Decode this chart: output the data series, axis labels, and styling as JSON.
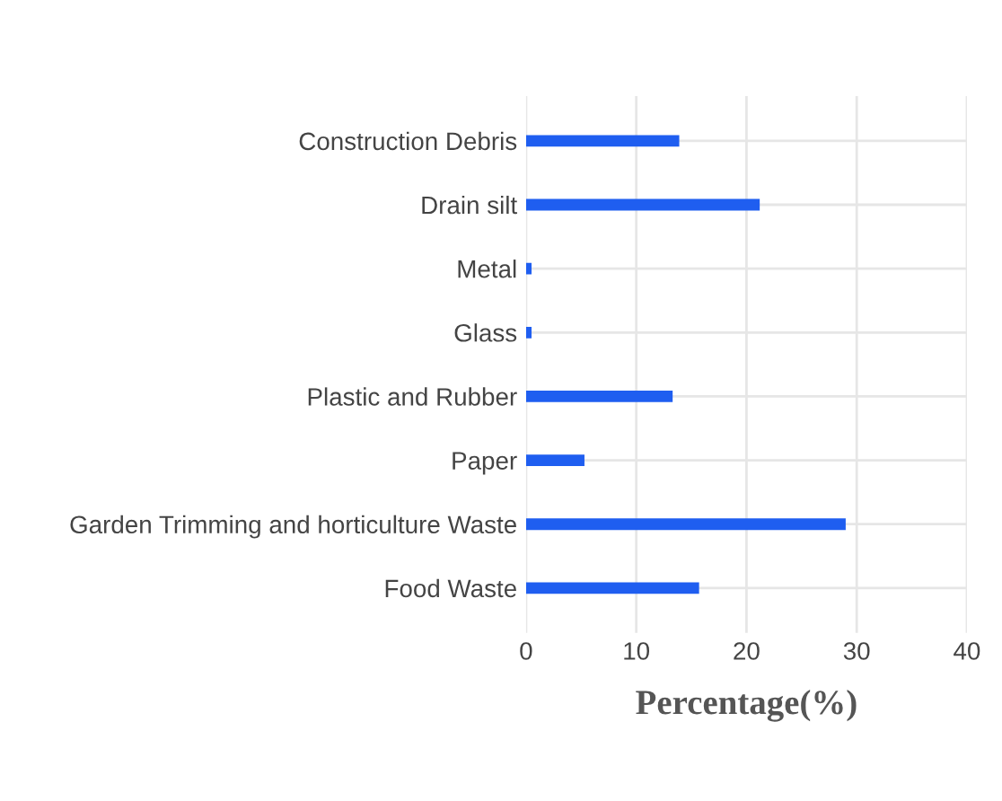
{
  "chart_data": {
    "type": "bar",
    "orientation": "horizontal",
    "xlabel": "Percentage(%)",
    "categories": [
      "Construction Debris",
      "Drain silt",
      "Metal",
      "Glass",
      "Plastic and Rubber",
      "Paper",
      "Garden Trimming and horticulture Waste",
      "Food Waste"
    ],
    "values": [
      13.9,
      21.2,
      0.5,
      0.5,
      13.3,
      5.3,
      29.0,
      15.7
    ],
    "color": "#1f5ef0",
    "xlim": [
      0,
      40
    ],
    "xticks": [
      0,
      10,
      20,
      30,
      40
    ],
    "grid": true
  }
}
